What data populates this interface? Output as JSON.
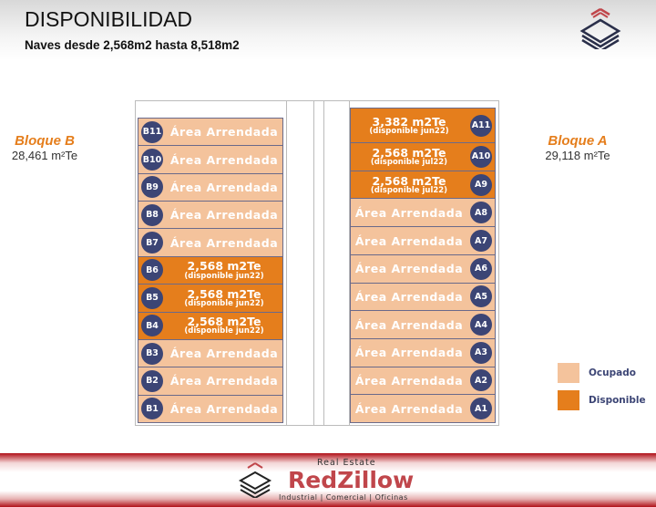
{
  "header": {
    "title": "DISPONIBILIDAD",
    "subtitle": "Naves desde 2,568m2 hasta 8,518m2"
  },
  "blocks": {
    "B": {
      "name": "Bloque B",
      "area": "28,461 m²Te"
    },
    "A": {
      "name": "Bloque A",
      "area": "29,118 m²Te"
    }
  },
  "colors": {
    "occupied": "#f4c39c",
    "available": "#e57e1c",
    "badge": "#3c4575"
  },
  "units_B": [
    {
      "id": "B11",
      "status": "occupied",
      "label": "Área Arrendada"
    },
    {
      "id": "B10",
      "status": "occupied",
      "label": "Área Arrendada"
    },
    {
      "id": "B9",
      "status": "occupied",
      "label": "Área Arrendada"
    },
    {
      "id": "B8",
      "status": "occupied",
      "label": "Área Arrendada"
    },
    {
      "id": "B7",
      "status": "occupied",
      "label": "Área Arrendada"
    },
    {
      "id": "B6",
      "status": "available",
      "label": "2,568 m2Te",
      "note": "(disponible jun22)"
    },
    {
      "id": "B5",
      "status": "available",
      "label": "2,568 m2Te",
      "note": "(disponible jun22)"
    },
    {
      "id": "B4",
      "status": "available",
      "label": "2,568 m2Te",
      "note": "(disponible jun22)"
    },
    {
      "id": "B3",
      "status": "occupied",
      "label": "Área Arrendada"
    },
    {
      "id": "B2",
      "status": "occupied",
      "label": "Área Arrendada"
    },
    {
      "id": "B1",
      "status": "occupied",
      "label": "Área Arrendada"
    }
  ],
  "units_A": [
    {
      "id": "A11",
      "status": "available",
      "label": "3,382 m2Te",
      "note": "(disponible jun22)"
    },
    {
      "id": "A10",
      "status": "available",
      "label": "2,568 m2Te",
      "note": "(disponible jul22)"
    },
    {
      "id": "A9",
      "status": "available",
      "label": "2,568 m2Te",
      "note": "(disponible jul22)"
    },
    {
      "id": "A8",
      "status": "occupied",
      "label": "Área Arrendada"
    },
    {
      "id": "A7",
      "status": "occupied",
      "label": "Área Arrendada"
    },
    {
      "id": "A6",
      "status": "occupied",
      "label": "Área Arrendada"
    },
    {
      "id": "A5",
      "status": "occupied",
      "label": "Área Arrendada"
    },
    {
      "id": "A4",
      "status": "occupied",
      "label": "Área Arrendada"
    },
    {
      "id": "A3",
      "status": "occupied",
      "label": "Área Arrendada"
    },
    {
      "id": "A2",
      "status": "occupied",
      "label": "Área Arrendada"
    },
    {
      "id": "A1",
      "status": "occupied",
      "label": "Área Arrendada"
    }
  ],
  "legend": {
    "occupied": "Ocupado",
    "available": "Disponible"
  },
  "footer": {
    "tagline": "Real Estate",
    "brand": "RedZillow",
    "sectors": "Industrial | Comercial | Oficinas"
  }
}
